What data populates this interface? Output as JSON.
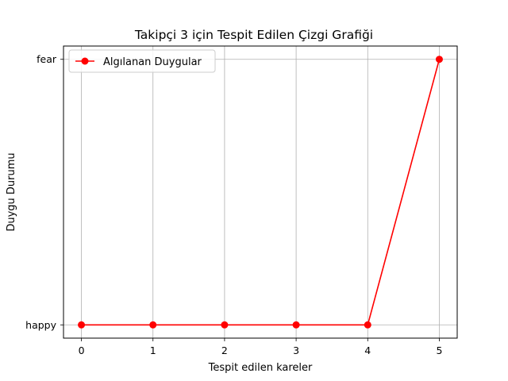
{
  "chart_data": {
    "type": "line",
    "title": "Takipçi 3 için Tespit Edilen Çizgi Grafiği",
    "xlabel": "Tespit edilen kareler",
    "ylabel": "Duygu Durumu",
    "x": [
      0,
      1,
      2,
      3,
      4,
      5
    ],
    "x_ticks": [
      "0",
      "1",
      "2",
      "3",
      "4",
      "5"
    ],
    "y_categories": [
      "happy",
      "fear"
    ],
    "series": [
      {
        "name": "Algılanan Duygular",
        "values": [
          "happy",
          "happy",
          "happy",
          "happy",
          "happy",
          "fear"
        ],
        "color": "#ff0000",
        "marker": "circle"
      }
    ],
    "xlim": [
      -0.25,
      5.25
    ],
    "grid": true,
    "legend_position": "top-left"
  }
}
